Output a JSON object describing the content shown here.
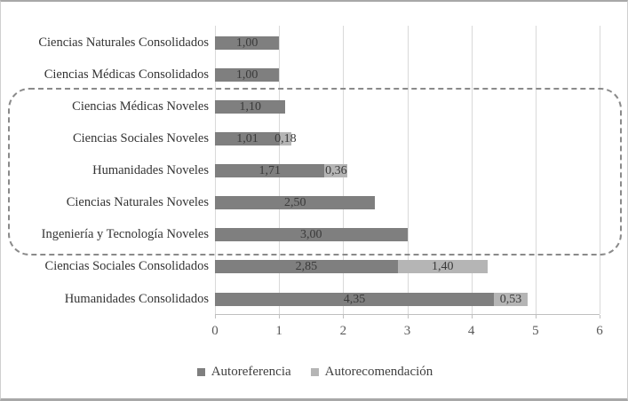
{
  "figure": {
    "background": "#ffffff",
    "frame_color": "#a8a8a8"
  },
  "chart_data": {
    "type": "bar",
    "orientation": "horizontal",
    "title": "",
    "xlabel": "",
    "ylabel": "",
    "xlim": [
      0,
      6
    ],
    "x_ticks": [
      "0",
      "1",
      "2",
      "3",
      "4",
      "5",
      "6"
    ],
    "grid": true,
    "gridline_color": "#d9d9d9",
    "axis_color": "#bfbfbf",
    "categories": [
      "Ciencias Naturales Consolidados",
      "Ciencias Médicas Consolidados",
      "Ciencias Médicas Noveles",
      "Ciencias Sociales Noveles",
      "Humanidades Noveles",
      "Ciencias Naturales Noveles",
      "Ingeniería y Tecnología Noveles",
      "Ciencias Sociales Consolidados",
      "Humanidades Consolidados"
    ],
    "series": [
      {
        "name": "Autoreferencia",
        "color": "#7f7f7f",
        "values": [
          1.0,
          1.0,
          1.1,
          1.01,
          1.71,
          2.5,
          3.0,
          2.85,
          4.35
        ]
      },
      {
        "name": "Autorecomendación",
        "color": "#b5b5b5",
        "values": [
          0,
          0,
          0,
          0.18,
          0.36,
          0,
          0,
          1.4,
          0.53
        ]
      }
    ],
    "value_labels": [
      [
        "1,00",
        null
      ],
      [
        "1,00",
        null
      ],
      [
        "1,10",
        null
      ],
      [
        "1,01",
        "0,18"
      ],
      [
        "1,71",
        "0,36"
      ],
      [
        "2,50",
        null
      ],
      [
        "3,00",
        null
      ],
      [
        "2,85",
        "1,40"
      ],
      [
        "4,35",
        "0,53"
      ]
    ],
    "legend_position": "bottom",
    "annotation_box": {
      "style": "dashed",
      "color": "#8a8a8a",
      "encloses_categories": [
        "Ciencias Médicas Noveles",
        "Ciencias Sociales Noveles",
        "Humanidades Noveles",
        "Ciencias Naturales Noveles",
        "Ingeniería y Tecnología Noveles"
      ]
    }
  }
}
